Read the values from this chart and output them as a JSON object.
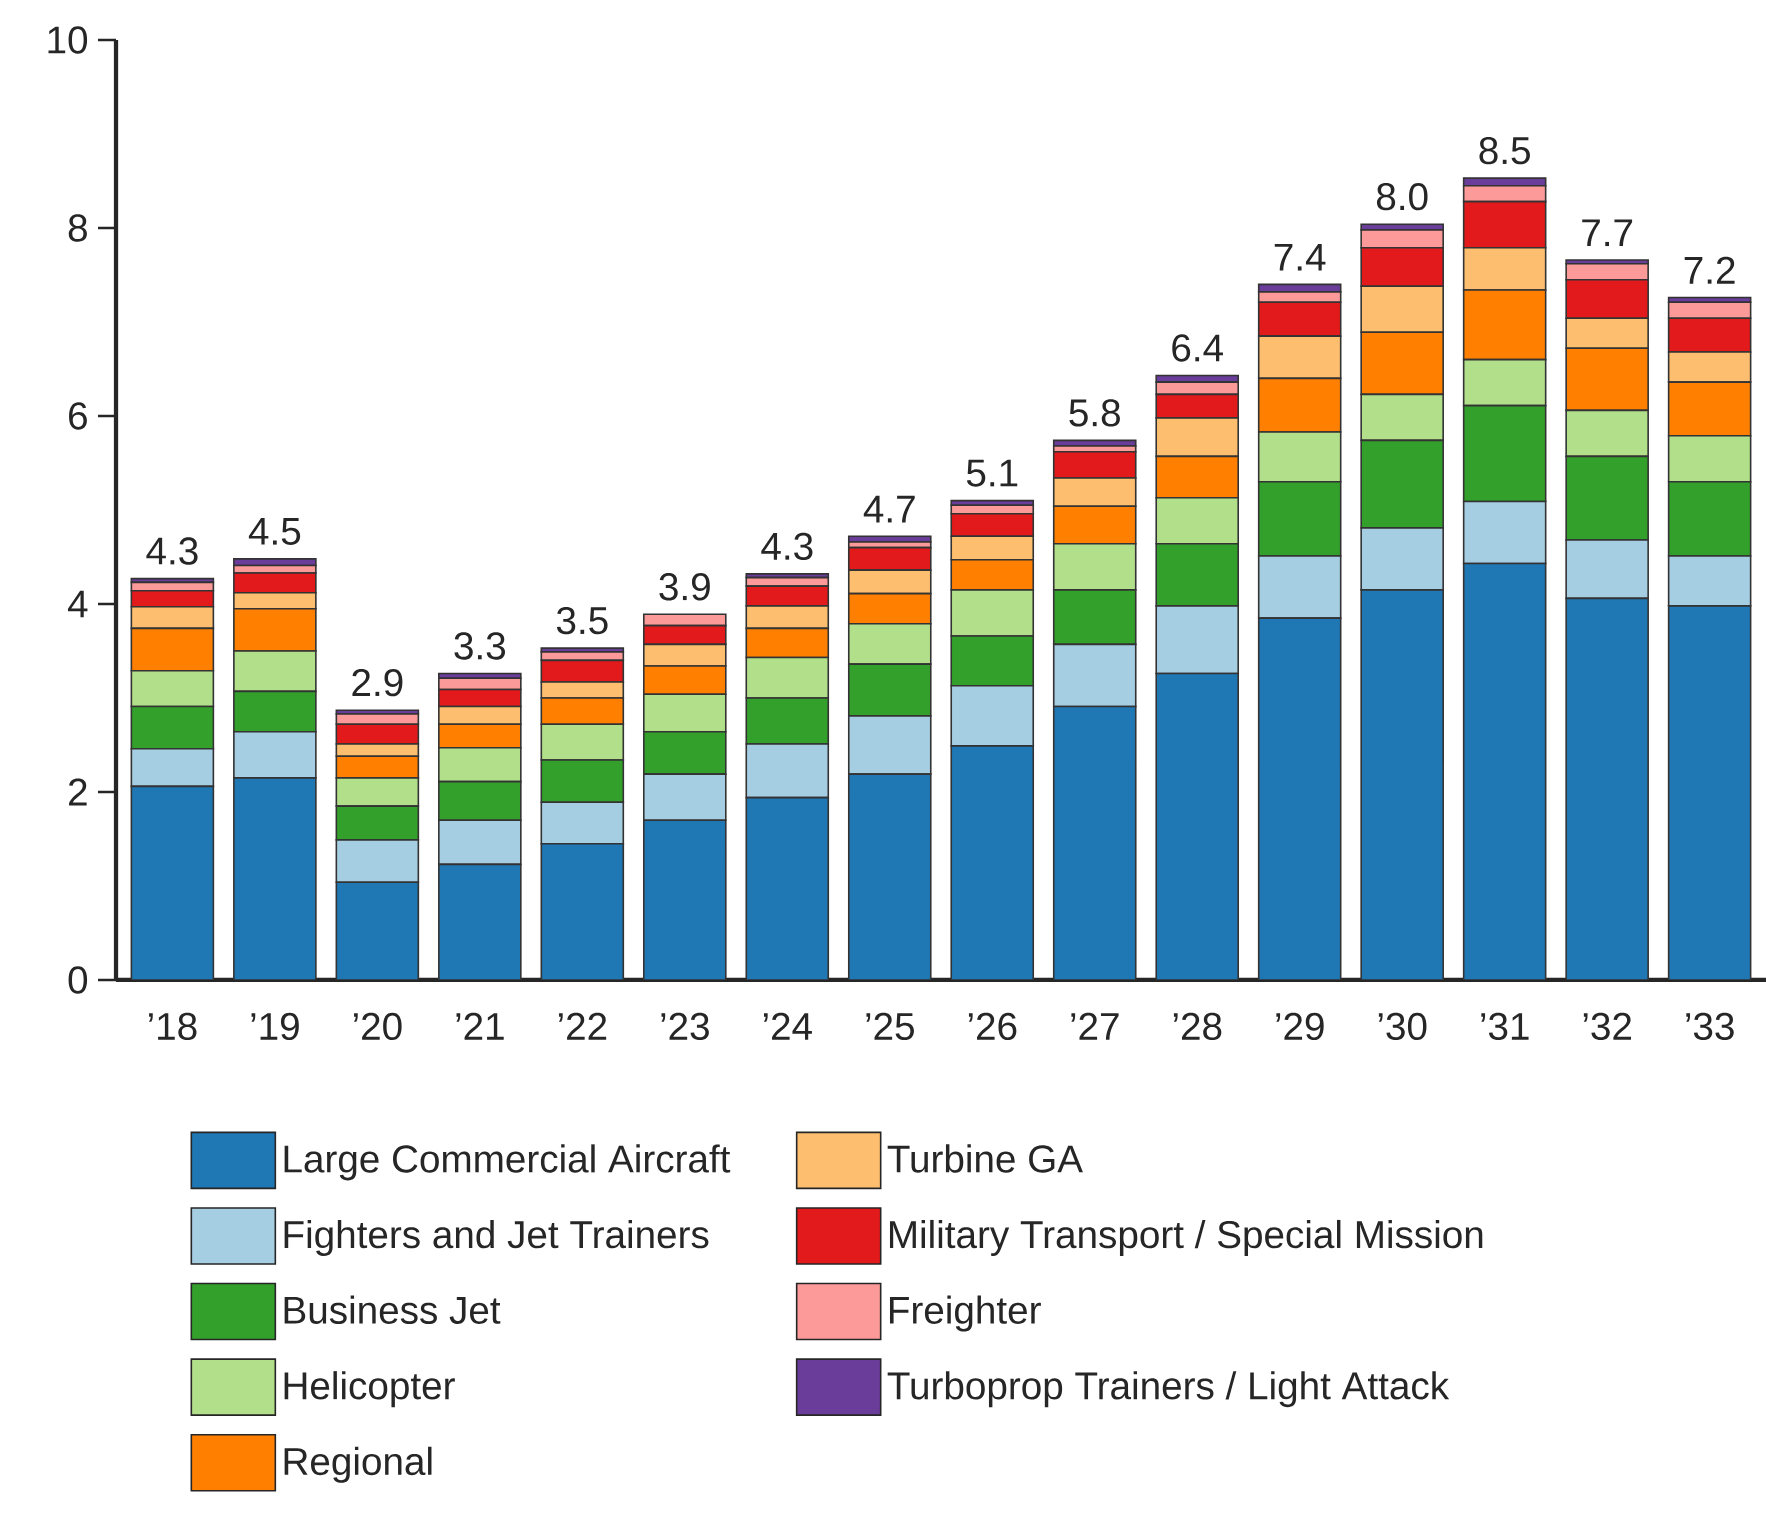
{
  "chart_data": {
    "type": "bar",
    "stacked": true,
    "categories": [
      "’18",
      "’19",
      "’20",
      "’21",
      "’22",
      "’23",
      "’24",
      "’25",
      "’26",
      "’27",
      "’28",
      "’29",
      "’30",
      "’31",
      "’32",
      "’33"
    ],
    "ylim": [
      0,
      10
    ],
    "yticks": [
      0,
      2,
      4,
      6,
      8,
      10
    ],
    "grid": false,
    "legend": "bottom",
    "totals": [
      "4.3",
      "4.5",
      "2.9",
      "3.3",
      "3.5",
      "3.9",
      "4.3",
      "4.7",
      "5.1",
      "5.8",
      "6.4",
      "7.4",
      "8.0",
      "8.5",
      "7.7",
      "7.2"
    ],
    "series": [
      {
        "name": "Large Commercial Aircraft",
        "color": "#1f77b4",
        "values": [
          2.06,
          2.15,
          1.04,
          1.23,
          1.45,
          1.7,
          1.94,
          2.19,
          2.49,
          2.91,
          3.26,
          3.85,
          4.15,
          4.43,
          4.06,
          3.98
        ]
      },
      {
        "name": "Fighters and Jet Trainers",
        "color": "#a6cee3",
        "values": [
          0.4,
          0.49,
          0.45,
          0.47,
          0.44,
          0.49,
          0.57,
          0.62,
          0.64,
          0.66,
          0.72,
          0.66,
          0.66,
          0.66,
          0.62,
          0.53
        ]
      },
      {
        "name": "Business Jet",
        "color": "#33a02c",
        "values": [
          0.45,
          0.43,
          0.36,
          0.41,
          0.45,
          0.45,
          0.49,
          0.55,
          0.53,
          0.58,
          0.66,
          0.79,
          0.93,
          1.02,
          0.89,
          0.79
        ]
      },
      {
        "name": "Helicopter",
        "color": "#b2df8a",
        "values": [
          0.38,
          0.43,
          0.3,
          0.36,
          0.38,
          0.4,
          0.43,
          0.43,
          0.49,
          0.49,
          0.49,
          0.53,
          0.49,
          0.49,
          0.49,
          0.49
        ]
      },
      {
        "name": "Regional",
        "color": "#ff7f00",
        "values": [
          0.45,
          0.45,
          0.23,
          0.25,
          0.28,
          0.3,
          0.31,
          0.32,
          0.32,
          0.4,
          0.44,
          0.57,
          0.66,
          0.74,
          0.66,
          0.57
        ]
      },
      {
        "name": "Turbine GA",
        "color": "#fdbf6f",
        "values": [
          0.23,
          0.17,
          0.13,
          0.19,
          0.17,
          0.23,
          0.24,
          0.25,
          0.25,
          0.3,
          0.41,
          0.45,
          0.49,
          0.45,
          0.32,
          0.32
        ]
      },
      {
        "name": "Military Transport / Special Mission",
        "color": "#e31a1c",
        "values": [
          0.17,
          0.21,
          0.21,
          0.18,
          0.23,
          0.2,
          0.21,
          0.24,
          0.24,
          0.28,
          0.25,
          0.36,
          0.41,
          0.49,
          0.41,
          0.36
        ]
      },
      {
        "name": "Freighter",
        "color": "#fb9a99",
        "values": [
          0.09,
          0.08,
          0.11,
          0.12,
          0.09,
          0.12,
          0.09,
          0.06,
          0.09,
          0.06,
          0.13,
          0.11,
          0.19,
          0.17,
          0.17,
          0.17
        ]
      },
      {
        "name": "Turboprop Trainers / Light Attack",
        "color": "#6a3d9a",
        "values": [
          0.04,
          0.07,
          0.04,
          0.05,
          0.04,
          0.0,
          0.04,
          0.06,
          0.05,
          0.06,
          0.07,
          0.08,
          0.06,
          0.08,
          0.04,
          0.05
        ]
      }
    ]
  }
}
